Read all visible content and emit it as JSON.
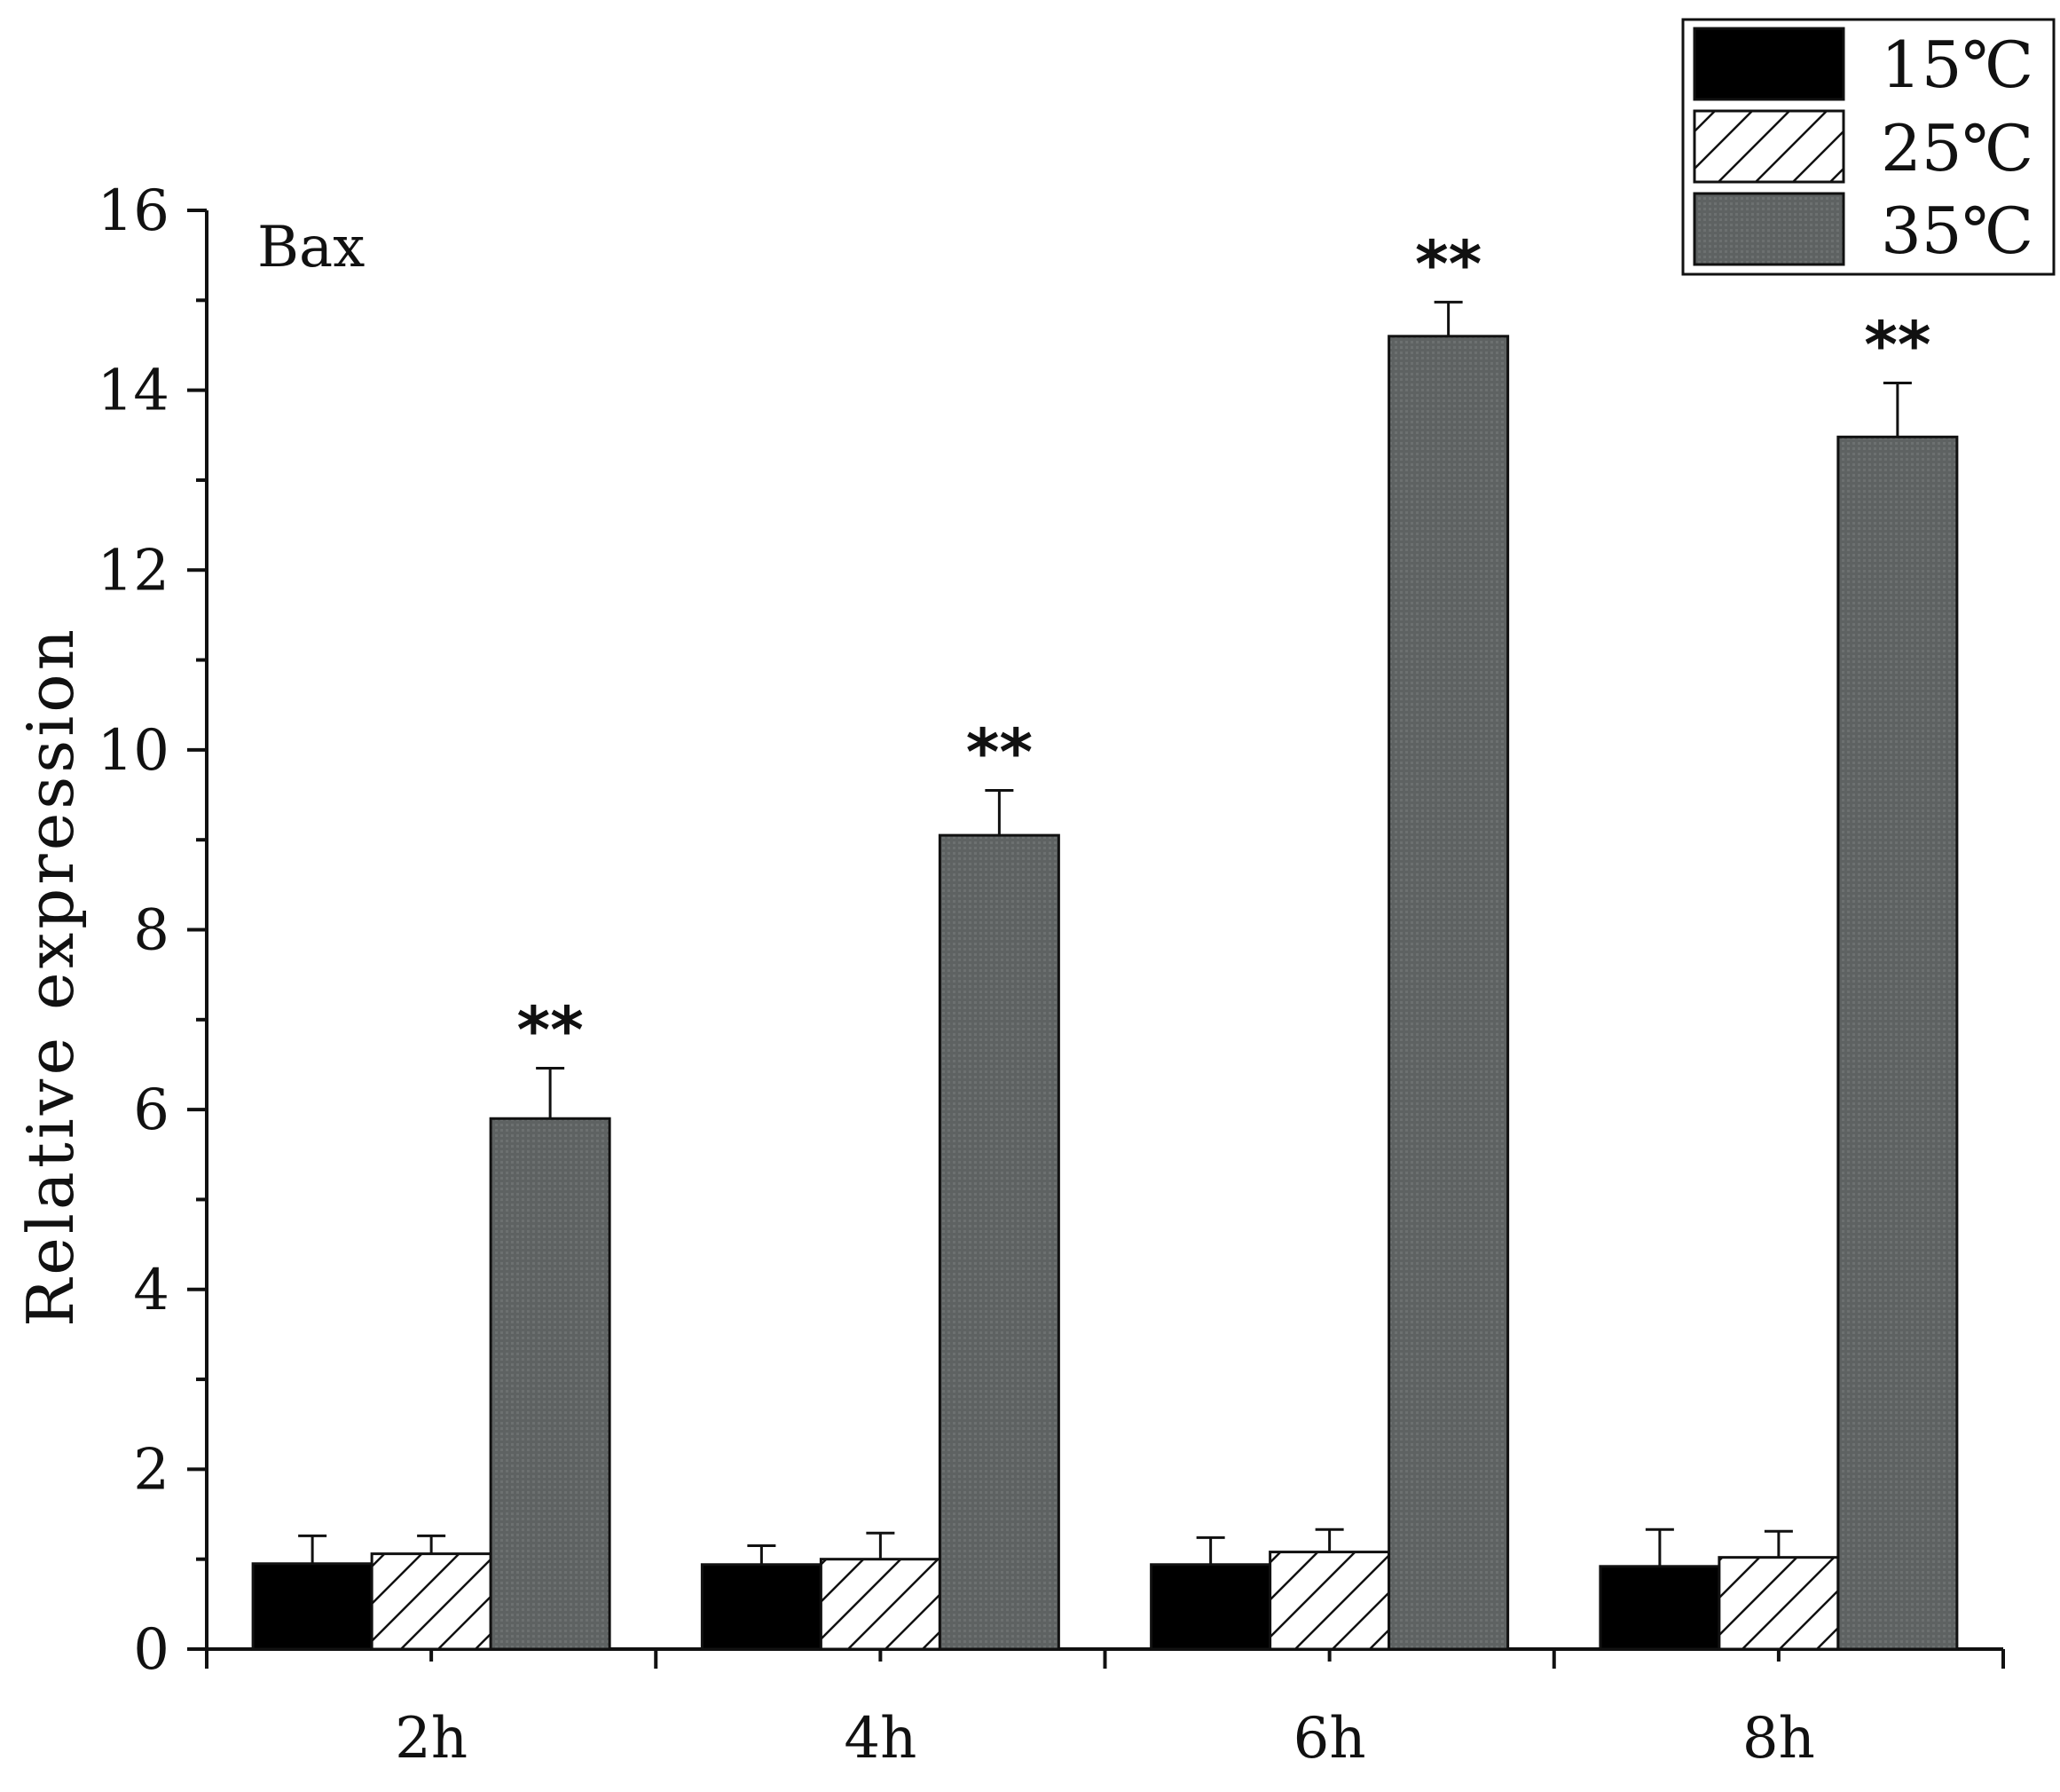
{
  "colors": {
    "series_15": "#000000",
    "series_25": "#ffffff",
    "series_35": "#5e6262",
    "axis": "#111111"
  },
  "chart_data": {
    "type": "bar",
    "panel_label": "Bax",
    "title": "",
    "xlabel": "",
    "ylabel": "Relative expression",
    "ylim": [
      0,
      16
    ],
    "yticks": [
      0,
      2,
      4,
      6,
      8,
      10,
      12,
      14,
      16
    ],
    "categories": [
      "2h",
      "4h",
      "6h",
      "8h"
    ],
    "grid": false,
    "legend_position": "top-right",
    "series": [
      {
        "name": "15℃",
        "fill": "solid-black",
        "values": [
          0.95,
          0.94,
          0.94,
          0.92
        ],
        "errors": [
          0.31,
          0.21,
          0.3,
          0.41
        ]
      },
      {
        "name": "25℃",
        "fill": "hatched",
        "values": [
          1.06,
          1.0,
          1.08,
          1.02
        ],
        "errors": [
          0.2,
          0.29,
          0.25,
          0.29
        ]
      },
      {
        "name": "35℃",
        "fill": "dark-grey",
        "values": [
          5.9,
          9.05,
          14.6,
          13.48
        ],
        "errors": [
          0.56,
          0.5,
          0.38,
          0.6
        ]
      }
    ],
    "annotations": [
      {
        "category": "2h",
        "series": "35℃",
        "text": "**"
      },
      {
        "category": "4h",
        "series": "35℃",
        "text": "**"
      },
      {
        "category": "6h",
        "series": "35℃",
        "text": "**"
      },
      {
        "category": "8h",
        "series": "35℃",
        "text": "**"
      }
    ]
  }
}
